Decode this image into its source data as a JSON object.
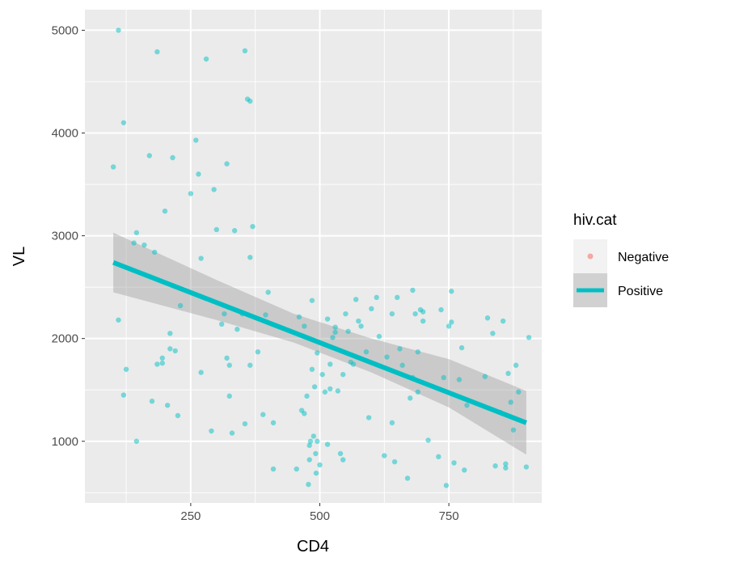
{
  "chart_data": {
    "type": "scatter",
    "xlabel": "CD4",
    "ylabel": "VL",
    "xlim": [
      45,
      930
    ],
    "ylim": [
      400,
      5200
    ],
    "x_ticks": [
      250,
      500,
      750
    ],
    "y_ticks": [
      1000,
      2000,
      3000,
      4000,
      5000
    ],
    "x_tick_labels": [
      "250",
      "500",
      "750"
    ],
    "y_tick_labels": [
      "1000",
      "2000",
      "3000",
      "4000",
      "5000"
    ],
    "grid": true,
    "legend": {
      "title": "hiv.cat",
      "position": "right",
      "entries": [
        "Negative",
        "Positive"
      ]
    },
    "colors": {
      "Negative": "#f8766d",
      "Positive": "#00bfc4",
      "panel": "#ebebeb",
      "band": "#999999"
    },
    "series": [
      {
        "name": "Positive",
        "points": [
          [
            110,
            5000
          ],
          [
            120,
            4100
          ],
          [
            100,
            3670
          ],
          [
            110,
            2180
          ],
          [
            125,
            1700
          ],
          [
            120,
            1450
          ],
          [
            145,
            1000
          ],
          [
            145,
            3030
          ],
          [
            140,
            2930
          ],
          [
            160,
            2910
          ],
          [
            170,
            3780
          ],
          [
            175,
            1390
          ],
          [
            180,
            2840
          ],
          [
            185,
            4790
          ],
          [
            185,
            1750
          ],
          [
            195,
            1760
          ],
          [
            195,
            1810
          ],
          [
            200,
            3240
          ],
          [
            205,
            1350
          ],
          [
            210,
            2050
          ],
          [
            210,
            1900
          ],
          [
            215,
            3760
          ],
          [
            220,
            1880
          ],
          [
            225,
            1250
          ],
          [
            230,
            2320
          ],
          [
            250,
            3410
          ],
          [
            260,
            3930
          ],
          [
            265,
            3600
          ],
          [
            270,
            2780
          ],
          [
            270,
            1670
          ],
          [
            280,
            4720
          ],
          [
            290,
            1100
          ],
          [
            295,
            3450
          ],
          [
            300,
            3060
          ],
          [
            310,
            2140
          ],
          [
            315,
            2240
          ],
          [
            320,
            3700
          ],
          [
            320,
            1810
          ],
          [
            325,
            1740
          ],
          [
            325,
            1440
          ],
          [
            330,
            1080
          ],
          [
            335,
            3050
          ],
          [
            340,
            2090
          ],
          [
            350,
            2240
          ],
          [
            355,
            4800
          ],
          [
            355,
            1170
          ],
          [
            360,
            4330
          ],
          [
            365,
            4310
          ],
          [
            365,
            2790
          ],
          [
            365,
            1740
          ],
          [
            370,
            3090
          ],
          [
            380,
            1870
          ],
          [
            390,
            1260
          ],
          [
            395,
            2230
          ],
          [
            400,
            2450
          ],
          [
            410,
            1180
          ],
          [
            410,
            730
          ],
          [
            455,
            730
          ],
          [
            460,
            2210
          ],
          [
            465,
            1300
          ],
          [
            470,
            2120
          ],
          [
            470,
            1270
          ],
          [
            475,
            1440
          ],
          [
            478,
            580
          ],
          [
            480,
            820
          ],
          [
            480,
            960
          ],
          [
            482,
            1000
          ],
          [
            485,
            1700
          ],
          [
            485,
            2370
          ],
          [
            488,
            1050
          ],
          [
            490,
            1530
          ],
          [
            492,
            880
          ],
          [
            493,
            690
          ],
          [
            495,
            1000
          ],
          [
            495,
            1860
          ],
          [
            500,
            770
          ],
          [
            505,
            1650
          ],
          [
            510,
            1480
          ],
          [
            515,
            970
          ],
          [
            515,
            2190
          ],
          [
            520,
            1750
          ],
          [
            520,
            1510
          ],
          [
            525,
            2010
          ],
          [
            530,
            2110
          ],
          [
            530,
            2060
          ],
          [
            535,
            1490
          ],
          [
            540,
            880
          ],
          [
            545,
            820
          ],
          [
            545,
            1650
          ],
          [
            550,
            2240
          ],
          [
            555,
            2070
          ],
          [
            560,
            1770
          ],
          [
            565,
            1750
          ],
          [
            570,
            2380
          ],
          [
            575,
            2170
          ],
          [
            580,
            2120
          ],
          [
            590,
            1870
          ],
          [
            595,
            1230
          ],
          [
            600,
            2290
          ],
          [
            610,
            2400
          ],
          [
            615,
            2020
          ],
          [
            625,
            860
          ],
          [
            630,
            1820
          ],
          [
            640,
            1180
          ],
          [
            640,
            2240
          ],
          [
            645,
            800
          ],
          [
            650,
            2400
          ],
          [
            655,
            1900
          ],
          [
            660,
            1740
          ],
          [
            670,
            640
          ],
          [
            675,
            1420
          ],
          [
            680,
            2470
          ],
          [
            680,
            1620
          ],
          [
            685,
            2240
          ],
          [
            690,
            1480
          ],
          [
            690,
            1870
          ],
          [
            695,
            2280
          ],
          [
            700,
            2170
          ],
          [
            700,
            2260
          ],
          [
            710,
            1010
          ],
          [
            730,
            850
          ],
          [
            735,
            2280
          ],
          [
            740,
            1620
          ],
          [
            745,
            570
          ],
          [
            750,
            2120
          ],
          [
            755,
            2160
          ],
          [
            755,
            2460
          ],
          [
            760,
            790
          ],
          [
            770,
            1600
          ],
          [
            775,
            1910
          ],
          [
            780,
            720
          ],
          [
            785,
            1350
          ],
          [
            820,
            1630
          ],
          [
            825,
            2200
          ],
          [
            835,
            2050
          ],
          [
            840,
            760
          ],
          [
            850,
            1280
          ],
          [
            855,
            2170
          ],
          [
            860,
            780
          ],
          [
            860,
            740
          ],
          [
            865,
            1660
          ],
          [
            870,
            1380
          ],
          [
            875,
            1110
          ],
          [
            880,
            1740
          ],
          [
            885,
            1480
          ],
          [
            900,
            750
          ],
          [
            905,
            2010
          ]
        ]
      }
    ],
    "fit": {
      "series": "Positive",
      "line": [
        [
          100,
          2740
        ],
        [
          900,
          1180
        ]
      ],
      "band_upper": [
        [
          100,
          3030
        ],
        [
          300,
          2570
        ],
        [
          450,
          2240
        ],
        [
          600,
          2000
        ],
        [
          750,
          1800
        ],
        [
          900,
          1490
        ]
      ],
      "band_lower": [
        [
          100,
          2450
        ],
        [
          300,
          2180
        ],
        [
          450,
          1960
        ],
        [
          600,
          1670
        ],
        [
          750,
          1330
        ],
        [
          900,
          870
        ]
      ]
    }
  }
}
